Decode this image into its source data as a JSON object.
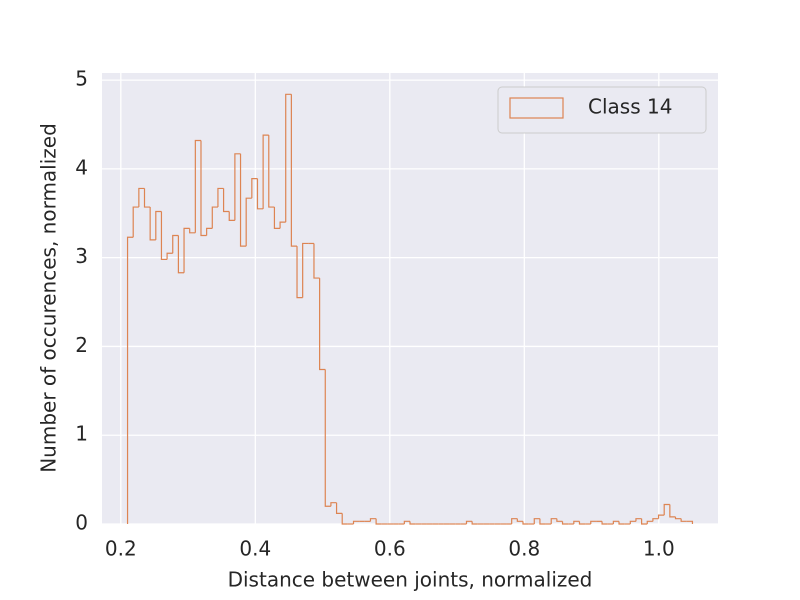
{
  "chart_data": {
    "type": "histogram",
    "xlabel": "Distance between joints, normalized",
    "ylabel": "Number of occurences, normalized",
    "series": [
      {
        "name": "Class 14",
        "color": "#dd8452",
        "bins": [
          0.21,
          0.2184,
          0.2268,
          0.2352,
          0.2436,
          0.252,
          0.2604,
          0.2688,
          0.2772,
          0.2856,
          0.294,
          0.3024,
          0.3108,
          0.3192,
          0.3276,
          0.336,
          0.3444,
          0.3528,
          0.3612,
          0.3696,
          0.378,
          0.3864,
          0.3948,
          0.4032,
          0.4116,
          0.42,
          0.4284,
          0.4368,
          0.4452,
          0.4536,
          0.462,
          0.4704,
          0.4788,
          0.4872,
          0.4956,
          0.504,
          0.5124,
          0.5208,
          0.5292,
          0.5376,
          0.546,
          0.5544,
          0.5628,
          0.5712,
          0.5796,
          0.588,
          0.5964,
          0.6048,
          0.6132,
          0.6216,
          0.63,
          0.6384,
          0.6468,
          0.6552,
          0.6636,
          0.672,
          0.6804,
          0.6888,
          0.6972,
          0.7056,
          0.714,
          0.7224,
          0.7308,
          0.7392,
          0.7476,
          0.756,
          0.7644,
          0.7728,
          0.7812,
          0.7896,
          0.798,
          0.8064,
          0.8148,
          0.8232,
          0.8316,
          0.84,
          0.8484,
          0.8568,
          0.8652,
          0.8736,
          0.882,
          0.8904,
          0.8988,
          0.9072,
          0.9156,
          0.924,
          0.9324,
          0.9408,
          0.9492,
          0.9576,
          0.966,
          0.9744,
          0.9828,
          0.9912,
          0.9996,
          1.008,
          1.0164,
          1.0248,
          1.0332,
          1.0416,
          1.05
        ],
        "values": [
          3.23,
          3.57,
          3.78,
          3.57,
          3.2,
          3.52,
          2.98,
          3.05,
          3.25,
          2.83,
          3.33,
          3.28,
          4.32,
          3.25,
          3.33,
          3.57,
          3.78,
          3.52,
          3.42,
          4.17,
          3.13,
          3.67,
          3.89,
          3.55,
          4.38,
          3.57,
          3.33,
          3.4,
          4.84,
          3.13,
          2.55,
          3.16,
          3.16,
          2.77,
          1.74,
          0.2,
          0.24,
          0.12,
          0,
          0,
          0.03,
          0.03,
          0.03,
          0.06,
          0,
          0,
          0,
          0,
          0,
          0.03,
          0,
          0,
          0,
          0,
          0,
          0,
          0,
          0,
          0,
          0,
          0.03,
          0,
          0,
          0,
          0,
          0,
          0,
          0,
          0.06,
          0.03,
          0,
          0,
          0.06,
          0,
          0,
          0.06,
          0.03,
          0,
          0,
          0.03,
          0,
          0,
          0.03,
          0.03,
          0,
          0,
          0.03,
          0,
          0,
          0.03,
          0.06,
          0,
          0.03,
          0.06,
          0.1,
          0.22,
          0.08,
          0.06,
          0.03,
          0.03
        ]
      }
    ],
    "xlim": [
      0.172,
      1.088
    ],
    "xticks": [
      0.2,
      0.4,
      0.6,
      0.8,
      {
        "value": 1,
        "label": "1.0"
      }
    ],
    "ylim": [
      0,
      5.08
    ],
    "yticks": [
      0,
      1,
      2,
      3,
      4,
      5
    ],
    "grid": true,
    "legend": "upper right"
  }
}
